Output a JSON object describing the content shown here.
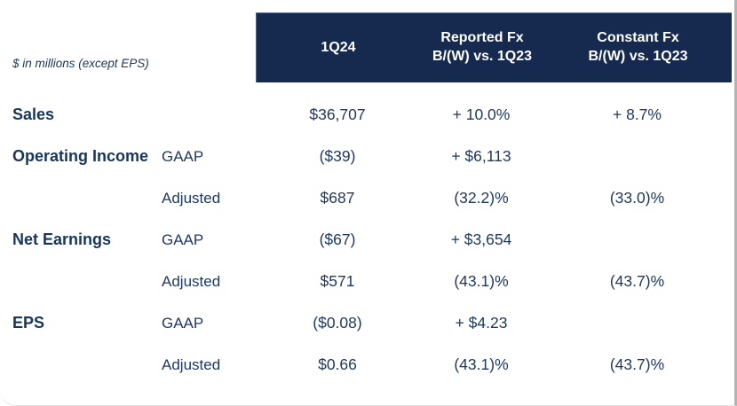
{
  "slide": {
    "units_note": "$ in millions (except EPS)"
  },
  "table": {
    "header": {
      "q": "1Q24",
      "reported_line1": "Reported Fx",
      "reported_line2": "B/(W) vs. 1Q23",
      "constant_line1": "Constant Fx",
      "constant_line2": "B/(W) vs. 1Q23"
    },
    "rows": [
      {
        "metric": "Sales",
        "basis": "",
        "q": "$36,707",
        "reported": "+ 10.0%",
        "constant": "+ 8.7%"
      },
      {
        "metric": "Operating Income",
        "basis": "GAAP",
        "q": "($39)",
        "reported": "+ $6,113",
        "constant": ""
      },
      {
        "metric": "",
        "basis": "Adjusted",
        "q": "$687",
        "reported": "(32.2)%",
        "constant": "(33.0)%"
      },
      {
        "metric": "Net Earnings",
        "basis": "GAAP",
        "q": "($67)",
        "reported": "+ $3,654",
        "constant": ""
      },
      {
        "metric": "",
        "basis": "Adjusted",
        "q": "$571",
        "reported": "(43.1)%",
        "constant": "(43.7)%"
      },
      {
        "metric": "EPS",
        "basis": "GAAP",
        "q": "($0.08)",
        "reported": "+ $4.23",
        "constant": ""
      },
      {
        "metric": "",
        "basis": "Adjusted",
        "q": "$0.66",
        "reported": "(43.1)%",
        "constant": "(43.7)%"
      }
    ]
  },
  "colors": {
    "header_bg": "#16294e",
    "header_text": "#ffffff",
    "metric_text": "#17365d",
    "value_text": "#1f3864",
    "edge_border": "#b3b3b3"
  },
  "chart_data": {
    "type": "table",
    "units_note": "$ in millions (except EPS)",
    "columns": [
      "Metric",
      "Basis",
      "1Q24",
      "Reported Fx B/(W) vs. 1Q23",
      "Constant Fx B/(W) vs. 1Q23"
    ],
    "rows": [
      [
        "Sales",
        "",
        "$36,707",
        "+ 10.0%",
        "+ 8.7%"
      ],
      [
        "Operating Income",
        "GAAP",
        "($39)",
        "+ $6,113",
        ""
      ],
      [
        "",
        "Adjusted",
        "$687",
        "(32.2)%",
        "(33.0)%"
      ],
      [
        "Net Earnings",
        "GAAP",
        "($67)",
        "+ $3,654",
        ""
      ],
      [
        "",
        "Adjusted",
        "$571",
        "(43.1)%",
        "(43.7)%"
      ],
      [
        "EPS",
        "GAAP",
        "($0.08)",
        "+ $4.23",
        ""
      ],
      [
        "",
        "Adjusted",
        "$0.66",
        "(43.1)%",
        "(43.7)%"
      ]
    ]
  }
}
